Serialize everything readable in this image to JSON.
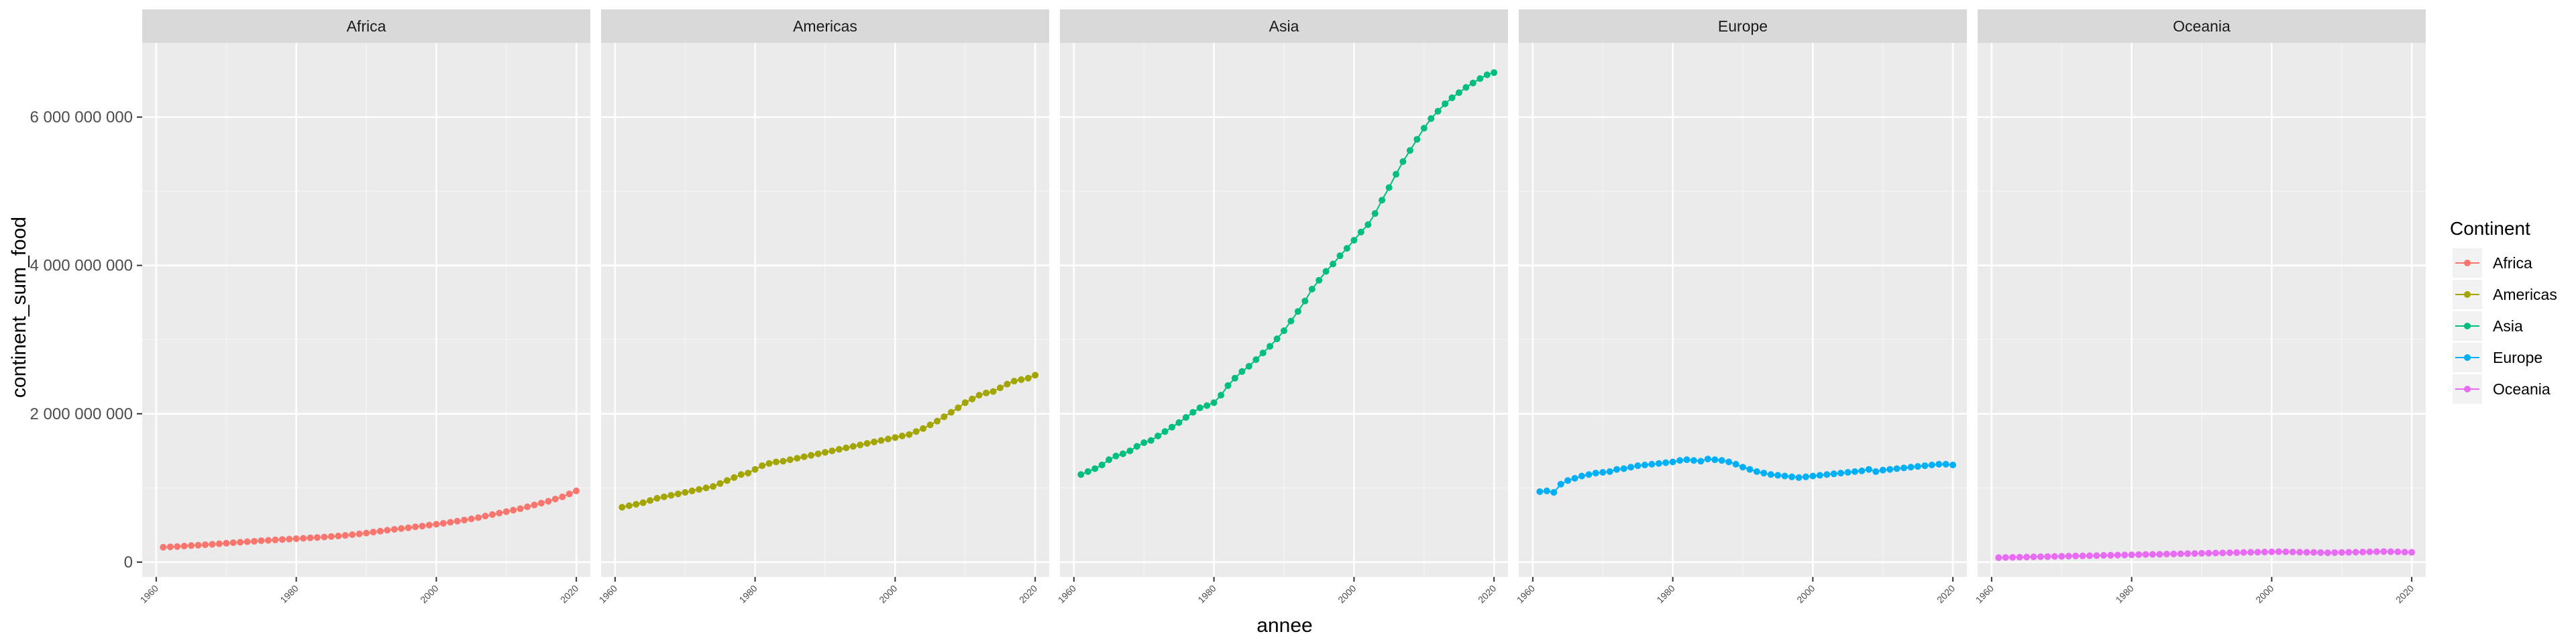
{
  "chart_data": {
    "type": "line",
    "xlabel": "annee",
    "ylabel": "continent_sum_food",
    "x_ticks": [
      1960,
      1980,
      2000,
      2020
    ],
    "y_ticks": [
      0,
      2000000000,
      4000000000,
      6000000000
    ],
    "y_tick_labels": [
      "0",
      "2 000 000 000",
      "4 000 000 000",
      "6 000 000 000"
    ],
    "xlim": [
      1958,
      2022
    ],
    "ylim": [
      -200000000,
      7000000000
    ],
    "grid": true,
    "legend": {
      "title": "Continent",
      "position": "right"
    },
    "x": [
      1961,
      1962,
      1963,
      1964,
      1965,
      1966,
      1967,
      1968,
      1969,
      1970,
      1971,
      1972,
      1973,
      1974,
      1975,
      1976,
      1977,
      1978,
      1979,
      1980,
      1981,
      1982,
      1983,
      1984,
      1985,
      1986,
      1987,
      1988,
      1989,
      1990,
      1991,
      1992,
      1993,
      1994,
      1995,
      1996,
      1997,
      1998,
      1999,
      2000,
      2001,
      2002,
      2003,
      2004,
      2005,
      2006,
      2007,
      2008,
      2009,
      2010,
      2011,
      2012,
      2013,
      2014,
      2015,
      2016,
      2017,
      2018,
      2019,
      2020
    ],
    "series": [
      {
        "name": "Africa",
        "color": "#F8766D",
        "values": [
          200000000,
          205000000,
          210000000,
          216000000,
          222000000,
          228000000,
          234000000,
          240000000,
          247000000,
          254000000,
          261000000,
          268000000,
          275000000,
          280000000,
          288000000,
          293000000,
          299000000,
          305000000,
          310000000,
          316000000,
          321000000,
          327000000,
          332000000,
          338000000,
          345000000,
          352000000,
          360000000,
          370000000,
          380000000,
          392000000,
          405000000,
          417000000,
          430000000,
          441000000,
          452000000,
          463000000,
          475000000,
          486000000,
          498000000,
          510000000,
          523000000,
          537000000,
          552000000,
          567000000,
          582000000,
          600000000,
          620000000,
          640000000,
          660000000,
          680000000,
          700000000,
          720000000,
          745000000,
          770000000,
          795000000,
          820000000,
          850000000,
          880000000,
          920000000,
          960000000
        ]
      },
      {
        "name": "Americas",
        "color": "#A3A500",
        "values": [
          740000000,
          760000000,
          780000000,
          800000000,
          830000000,
          860000000,
          880000000,
          900000000,
          920000000,
          940000000,
          960000000,
          980000000,
          1000000000,
          1020000000,
          1060000000,
          1100000000,
          1140000000,
          1180000000,
          1200000000,
          1250000000,
          1300000000,
          1330000000,
          1350000000,
          1360000000,
          1380000000,
          1400000000,
          1420000000,
          1440000000,
          1460000000,
          1480000000,
          1500000000,
          1520000000,
          1540000000,
          1560000000,
          1580000000,
          1600000000,
          1620000000,
          1640000000,
          1660000000,
          1680000000,
          1700000000,
          1720000000,
          1760000000,
          1800000000,
          1850000000,
          1900000000,
          1960000000,
          2020000000,
          2080000000,
          2150000000,
          2200000000,
          2250000000,
          2280000000,
          2300000000,
          2350000000,
          2400000000,
          2440000000,
          2460000000,
          2480000000,
          2520000000
        ]
      },
      {
        "name": "Asia",
        "color": "#00BF7D",
        "values": [
          1180000000,
          1220000000,
          1260000000,
          1310000000,
          1380000000,
          1430000000,
          1460000000,
          1500000000,
          1560000000,
          1610000000,
          1640000000,
          1700000000,
          1760000000,
          1820000000,
          1880000000,
          1950000000,
          2020000000,
          2080000000,
          2110000000,
          2150000000,
          2250000000,
          2380000000,
          2480000000,
          2570000000,
          2640000000,
          2730000000,
          2820000000,
          2910000000,
          3010000000,
          3120000000,
          3250000000,
          3380000000,
          3520000000,
          3680000000,
          3800000000,
          3920000000,
          4020000000,
          4130000000,
          4230000000,
          4340000000,
          4450000000,
          4550000000,
          4700000000,
          4880000000,
          5050000000,
          5230000000,
          5400000000,
          5550000000,
          5700000000,
          5850000000,
          5980000000,
          6080000000,
          6180000000,
          6260000000,
          6330000000,
          6400000000,
          6460000000,
          6520000000,
          6570000000,
          6600000000
        ]
      },
      {
        "name": "Europe",
        "color": "#00B0F6",
        "values": [
          950000000,
          960000000,
          940000000,
          1050000000,
          1100000000,
          1130000000,
          1160000000,
          1180000000,
          1200000000,
          1210000000,
          1220000000,
          1250000000,
          1260000000,
          1280000000,
          1300000000,
          1310000000,
          1320000000,
          1330000000,
          1340000000,
          1350000000,
          1370000000,
          1380000000,
          1370000000,
          1360000000,
          1390000000,
          1380000000,
          1370000000,
          1350000000,
          1320000000,
          1280000000,
          1250000000,
          1220000000,
          1200000000,
          1180000000,
          1170000000,
          1160000000,
          1150000000,
          1140000000,
          1150000000,
          1160000000,
          1170000000,
          1180000000,
          1190000000,
          1200000000,
          1210000000,
          1220000000,
          1230000000,
          1250000000,
          1220000000,
          1240000000,
          1250000000,
          1260000000,
          1270000000,
          1280000000,
          1290000000,
          1300000000,
          1310000000,
          1320000000,
          1320000000,
          1310000000
        ]
      },
      {
        "name": "Oceania",
        "color": "#E76BF3",
        "values": [
          60000000,
          62000000,
          64000000,
          66000000,
          68000000,
          70000000,
          72000000,
          74000000,
          76000000,
          78000000,
          80000000,
          82000000,
          84000000,
          86000000,
          88000000,
          90000000,
          92000000,
          94000000,
          96000000,
          98000000,
          100000000,
          102000000,
          104000000,
          106000000,
          108000000,
          110000000,
          112000000,
          114000000,
          116000000,
          118000000,
          120000000,
          122000000,
          124000000,
          126000000,
          128000000,
          130000000,
          132000000,
          134000000,
          136000000,
          138000000,
          140000000,
          138000000,
          136000000,
          134000000,
          132000000,
          130000000,
          128000000,
          126000000,
          128000000,
          130000000,
          132000000,
          134000000,
          136000000,
          138000000,
          140000000,
          142000000,
          140000000,
          138000000,
          135000000,
          132000000
        ]
      }
    ]
  }
}
